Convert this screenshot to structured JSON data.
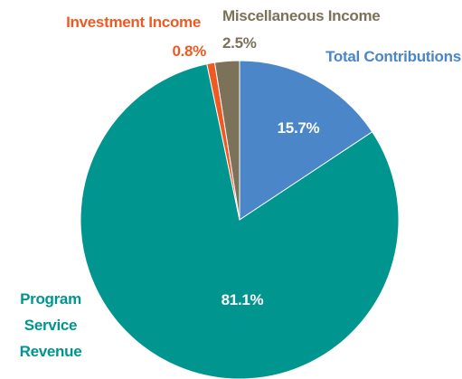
{
  "chart_data": {
    "type": "pie",
    "categories": [
      "Total Contributions",
      "Program Service Revenue",
      "Investment Income",
      "Miscellaneous Income"
    ],
    "values": [
      15.7,
      81.1,
      0.8,
      2.5
    ],
    "value_labels": [
      "15.7%",
      "81.1%",
      "0.8%",
      "2.5%"
    ],
    "colors": [
      "#4a86c8",
      "#00958f",
      "#f05a22",
      "#7b7259"
    ]
  }
}
